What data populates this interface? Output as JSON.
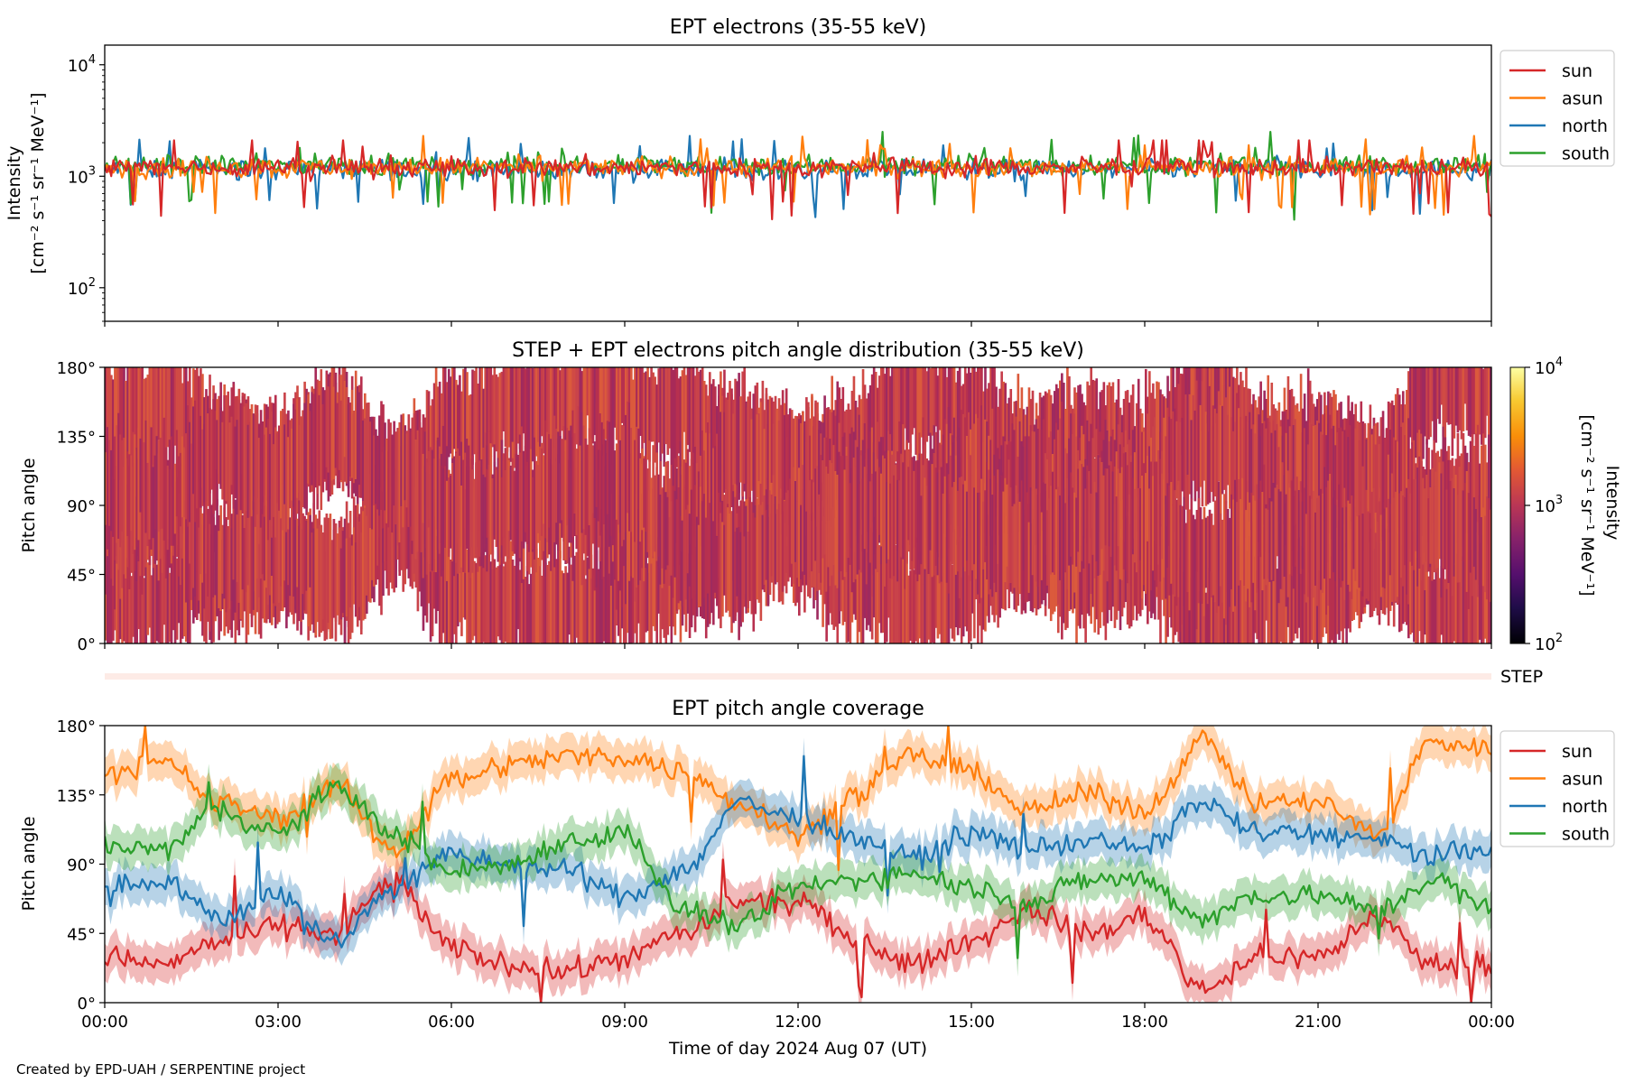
{
  "credit": "Created by EPD-UAH / SERPENTINE project",
  "colors": {
    "sun": "#d62728",
    "asun": "#ff7f0e",
    "north": "#1f77b4",
    "south": "#2ca02c",
    "pad_fill": "#c8404a",
    "step_strip": "#fdebe6"
  },
  "chart_data": [
    {
      "type": "line",
      "title": "EPT electrons (35-55 keV)",
      "ylabel_line1": "Intensity",
      "ylabel_line2": "[cm⁻² s⁻¹ sr⁻¹ MeV⁻¹]",
      "yscale": "log",
      "ylim": [
        50,
        15000
      ],
      "ytick_base": "10",
      "yticks": [
        {
          "value": 100,
          "exp": "2"
        },
        {
          "value": 1000,
          "exp": "3"
        },
        {
          "value": 10000,
          "exp": "4"
        }
      ],
      "x_range_hours": [
        0,
        24
      ],
      "legend": {
        "placement": "outside-right",
        "entries": [
          "sun",
          "asun",
          "north",
          "south"
        ]
      },
      "series": [
        {
          "name": "sun",
          "typical_value": 1200,
          "range": [
            380,
            2100
          ]
        },
        {
          "name": "asun",
          "typical_value": 1200,
          "range": [
            450,
            2300
          ]
        },
        {
          "name": "north",
          "typical_value": 1150,
          "range": [
            430,
            2300
          ]
        },
        {
          "name": "south",
          "typical_value": 1250,
          "range": [
            400,
            2500
          ]
        }
      ]
    },
    {
      "type": "heatmap",
      "title": "STEP + EPT electrons pitch angle distribution (35-55 keV)",
      "ylabel": "Pitch angle",
      "ylim": [
        0,
        180
      ],
      "yticks": [
        "0°",
        "45°",
        "90°",
        "135°",
        "180°"
      ],
      "colorbar": {
        "label": "Intensity [cm⁻² s⁻¹ sr⁻¹ MeV⁻¹]",
        "scale": "log",
        "range": [
          100,
          10000
        ],
        "ticks": [
          {
            "base": "10",
            "exp": "2"
          },
          {
            "base": "10",
            "exp": "3"
          },
          {
            "base": "10",
            "exp": "4"
          }
        ]
      },
      "typical_intensity": 1200,
      "step_label": "STEP"
    },
    {
      "type": "line",
      "title": "EPT pitch angle coverage",
      "ylabel": "Pitch angle",
      "xlabel": "Time of day 2024 Aug 07 (UT)",
      "ylim": [
        0,
        180
      ],
      "yticks": [
        "0°",
        "45°",
        "90°",
        "135°",
        "180°"
      ],
      "xticks": [
        "00:00",
        "03:00",
        "06:00",
        "09:00",
        "12:00",
        "15:00",
        "18:00",
        "21:00",
        "00:00"
      ],
      "legend": {
        "placement": "outside-right",
        "entries": [
          "sun",
          "asun",
          "north",
          "south"
        ]
      },
      "series": [
        {
          "name": "sun",
          "x": [
            0,
            1,
            2,
            3,
            4,
            5,
            6,
            7,
            8,
            9,
            10,
            11,
            12,
            13,
            14,
            15,
            16,
            17,
            18,
            19,
            20,
            21,
            22,
            23,
            24
          ],
          "y": [
            30,
            25,
            40,
            50,
            45,
            80,
            35,
            25,
            20,
            30,
            45,
            65,
            65,
            40,
            25,
            40,
            60,
            45,
            55,
            10,
            30,
            30,
            55,
            25,
            25
          ]
        },
        {
          "name": "asun",
          "x": [
            0,
            1,
            2,
            3,
            4,
            5,
            6,
            7,
            8,
            9,
            10,
            11,
            12,
            13,
            14,
            15,
            16,
            17,
            18,
            19,
            20,
            21,
            22,
            23,
            24
          ],
          "y": [
            150,
            155,
            130,
            120,
            140,
            100,
            145,
            155,
            160,
            160,
            150,
            130,
            110,
            135,
            160,
            150,
            125,
            135,
            125,
            170,
            130,
            130,
            110,
            170,
            165
          ]
        },
        {
          "name": "north",
          "x": [
            0,
            1,
            2,
            3,
            4,
            5,
            6,
            7,
            8,
            9,
            10,
            11,
            12,
            13,
            14,
            15,
            16,
            17,
            18,
            19,
            20,
            21,
            22,
            23,
            24
          ],
          "y": [
            75,
            80,
            55,
            70,
            40,
            75,
            95,
            90,
            85,
            70,
            85,
            130,
            120,
            105,
            95,
            110,
            100,
            105,
            100,
            130,
            110,
            110,
            105,
            95,
            100
          ]
        },
        {
          "name": "south",
          "x": [
            0,
            1,
            2,
            3,
            4,
            5,
            6,
            7,
            8,
            9,
            10,
            11,
            12,
            13,
            14,
            15,
            16,
            17,
            18,
            19,
            20,
            21,
            22,
            23,
            24
          ],
          "y": [
            100,
            100,
            125,
            110,
            140,
            110,
            85,
            90,
            105,
            110,
            60,
            50,
            75,
            80,
            85,
            75,
            65,
            80,
            80,
            55,
            70,
            70,
            60,
            80,
            60
          ]
        }
      ]
    }
  ]
}
